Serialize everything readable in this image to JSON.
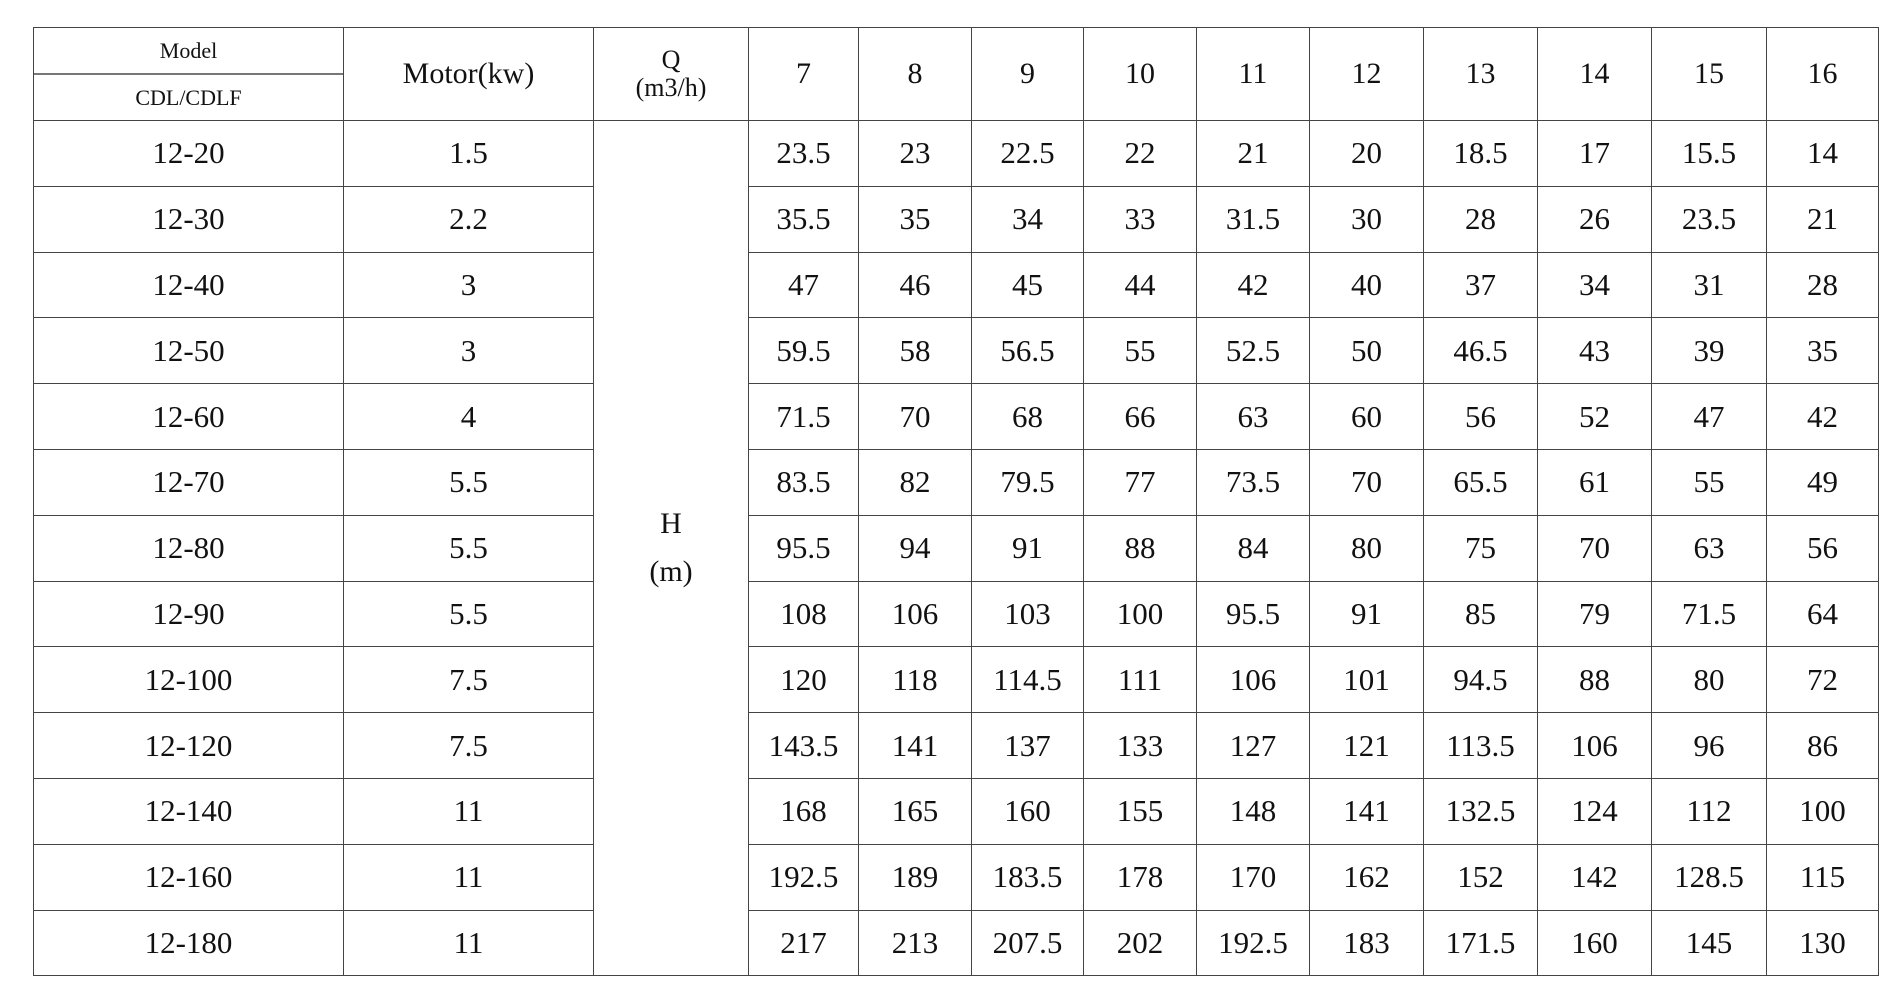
{
  "header": {
    "model_top": "Model",
    "model_bottom": "CDL/CDLF",
    "motor": "Motor(kw)",
    "q_label": "Q",
    "q_unit": "(m3/h)",
    "flows": [
      "7",
      "8",
      "9",
      "10",
      "11",
      "12",
      "13",
      "14",
      "15",
      "16"
    ]
  },
  "h_label": "H",
  "h_unit": "(m)",
  "rows": [
    {
      "model": "12-20",
      "motor": "1.5",
      "heads": [
        "23.5",
        "23",
        "22.5",
        "22",
        "21",
        "20",
        "18.5",
        "17",
        "15.5",
        "14"
      ]
    },
    {
      "model": "12-30",
      "motor": "2.2",
      "heads": [
        "35.5",
        "35",
        "34",
        "33",
        "31.5",
        "30",
        "28",
        "26",
        "23.5",
        "21"
      ]
    },
    {
      "model": "12-40",
      "motor": "3",
      "heads": [
        "47",
        "46",
        "45",
        "44",
        "42",
        "40",
        "37",
        "34",
        "31",
        "28"
      ]
    },
    {
      "model": "12-50",
      "motor": "3",
      "heads": [
        "59.5",
        "58",
        "56.5",
        "55",
        "52.5",
        "50",
        "46.5",
        "43",
        "39",
        "35"
      ]
    },
    {
      "model": "12-60",
      "motor": "4",
      "heads": [
        "71.5",
        "70",
        "68",
        "66",
        "63",
        "60",
        "56",
        "52",
        "47",
        "42"
      ]
    },
    {
      "model": "12-70",
      "motor": "5.5",
      "heads": [
        "83.5",
        "82",
        "79.5",
        "77",
        "73.5",
        "70",
        "65.5",
        "61",
        "55",
        "49"
      ]
    },
    {
      "model": "12-80",
      "motor": "5.5",
      "heads": [
        "95.5",
        "94",
        "91",
        "88",
        "84",
        "80",
        "75",
        "70",
        "63",
        "56"
      ]
    },
    {
      "model": "12-90",
      "motor": "5.5",
      "heads": [
        "108",
        "106",
        "103",
        "100",
        "95.5",
        "91",
        "85",
        "79",
        "71.5",
        "64"
      ]
    },
    {
      "model": "12-100",
      "motor": "7.5",
      "heads": [
        "120",
        "118",
        "114.5",
        "111",
        "106",
        "101",
        "94.5",
        "88",
        "80",
        "72"
      ]
    },
    {
      "model": "12-120",
      "motor": "7.5",
      "heads": [
        "143.5",
        "141",
        "137",
        "133",
        "127",
        "121",
        "113.5",
        "106",
        "96",
        "86"
      ]
    },
    {
      "model": "12-140",
      "motor": "11",
      "heads": [
        "168",
        "165",
        "160",
        "155",
        "148",
        "141",
        "132.5",
        "124",
        "112",
        "100"
      ]
    },
    {
      "model": "12-160",
      "motor": "11",
      "heads": [
        "192.5",
        "189",
        "183.5",
        "178",
        "170",
        "162",
        "152",
        "142",
        "128.5",
        "115"
      ]
    },
    {
      "model": "12-180",
      "motor": "11",
      "heads": [
        "217",
        "213",
        "207.5",
        "202",
        "192.5",
        "183",
        "171.5",
        "160",
        "145",
        "130"
      ]
    }
  ]
}
